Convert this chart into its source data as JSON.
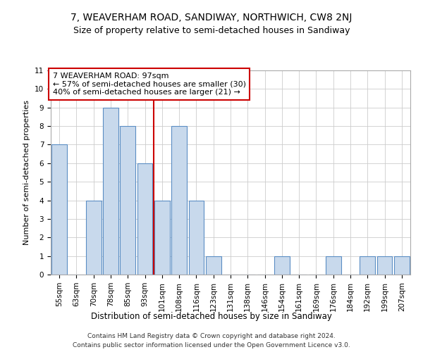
{
  "title1": "7, WEAVERHAM ROAD, SANDIWAY, NORTHWICH, CW8 2NJ",
  "title2": "Size of property relative to semi-detached houses in Sandiway",
  "xlabel": "Distribution of semi-detached houses by size in Sandiway",
  "ylabel": "Number of semi-detached properties",
  "categories": [
    "55sqm",
    "63sqm",
    "70sqm",
    "78sqm",
    "85sqm",
    "93sqm",
    "101sqm",
    "108sqm",
    "116sqm",
    "123sqm",
    "131sqm",
    "138sqm",
    "146sqm",
    "154sqm",
    "161sqm",
    "169sqm",
    "176sqm",
    "184sqm",
    "192sqm",
    "199sqm",
    "207sqm"
  ],
  "values": [
    7,
    0,
    4,
    9,
    8,
    6,
    4,
    8,
    4,
    1,
    0,
    0,
    0,
    1,
    0,
    0,
    1,
    0,
    1,
    1,
    1
  ],
  "bar_color": "#c8d9ec",
  "bar_edge_color": "#5b8ec4",
  "vline_index": 6,
  "marker_label": "7 WEAVERHAM ROAD: 97sqm",
  "annotation_line1": "← 57% of semi-detached houses are smaller (30)",
  "annotation_line2": "40% of semi-detached houses are larger (21) →",
  "vline_color": "#cc0000",
  "annotation_box_facecolor": "#ffffff",
  "annotation_box_edgecolor": "#cc0000",
  "ylim": [
    0,
    11
  ],
  "yticks": [
    0,
    1,
    2,
    3,
    4,
    5,
    6,
    7,
    8,
    9,
    10,
    11
  ],
  "footer1": "Contains HM Land Registry data © Crown copyright and database right 2024.",
  "footer2": "Contains public sector information licensed under the Open Government Licence v3.0.",
  "grid_color": "#cccccc",
  "title1_fontsize": 10,
  "title2_fontsize": 9,
  "ylabel_fontsize": 8,
  "xlabel_fontsize": 8.5,
  "tick_fontsize": 7.5,
  "annot_fontsize": 8,
  "footer_fontsize": 6.5,
  "bg_color": "#ffffff"
}
